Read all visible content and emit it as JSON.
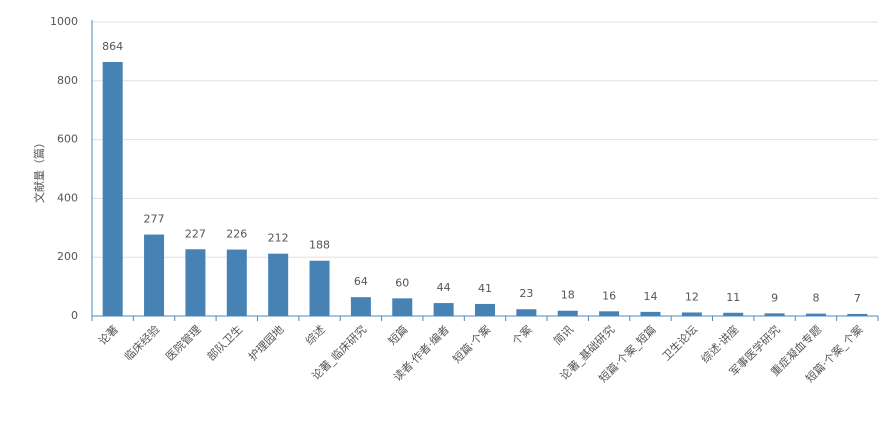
{
  "chart_data": {
    "type": "bar",
    "y_label": "文献量（篇）",
    "categories": [
      "论著",
      "临床经验",
      "医院管理",
      "部队卫生",
      "护理园地",
      "综述",
      "论著_临床研究",
      "短篇",
      "读者·作者·编者",
      "短篇·个案",
      "个案",
      "简讯",
      "论著_基础研究",
      "短篇·个案_短篇",
      "卫生论坛",
      "综述·讲座",
      "军事医学研究",
      "重症凝血专题",
      "短篇·个案_个案"
    ],
    "values": [
      864,
      277,
      227,
      226,
      212,
      188,
      64,
      60,
      44,
      41,
      23,
      18,
      16,
      14,
      12,
      11,
      9,
      8,
      7
    ],
    "color": "#4682b4",
    "ylim": [
      0,
      1000
    ],
    "yticks": [
      0,
      200,
      400,
      600,
      800,
      1000
    ],
    "grid": true
  }
}
